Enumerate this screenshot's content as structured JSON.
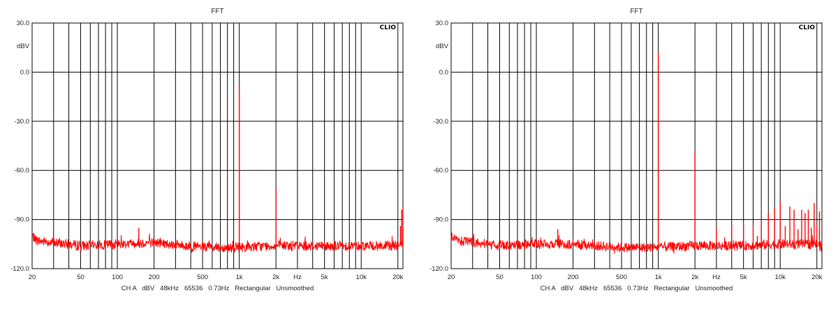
{
  "chart_data": [
    {
      "type": "line",
      "title": "FFT",
      "brand": "CLIO",
      "ylabel": "dBV",
      "xlabel": "Hz",
      "x_scale": "log",
      "xlim": [
        20,
        22000
      ],
      "ylim": [
        -120,
        30
      ],
      "y_ticks": [
        "30.0",
        "0.0",
        "-30.0",
        "-60.0",
        "-90.0",
        "-120.0"
      ],
      "y_tick_values": [
        30,
        0,
        -30,
        -60,
        -90,
        -120
      ],
      "x_ticks": [
        "20",
        "50",
        "100",
        "200",
        "500",
        "1k",
        "2k",
        "Hz",
        "5k",
        "10k",
        "20k"
      ],
      "x_tick_values": [
        20,
        50,
        100,
        200,
        500,
        1000,
        2000,
        3000,
        5000,
        10000,
        20000
      ],
      "footer": "CH A   dBV   48kHz   65536   0.73Hz   Rectangular   Unsmoothed",
      "series": [
        {
          "color": "#ff0000",
          "noise_floor": [
            [
              20,
              -100
            ],
            [
              22,
              -103
            ],
            [
              30,
              -104
            ],
            [
              50,
              -106
            ],
            [
              100,
              -105
            ],
            [
              200,
              -104
            ],
            [
              500,
              -107
            ],
            [
              1000,
              -107
            ],
            [
              2000,
              -106
            ],
            [
              5000,
              -106
            ],
            [
              10000,
              -106
            ],
            [
              20000,
              -106
            ],
            [
              22000,
              -105
            ]
          ],
          "peaks": [
            [
              1000,
              -7
            ],
            [
              2000,
              -71
            ],
            [
              150,
              -95
            ],
            [
              21000,
              -94
            ],
            [
              21500,
              -84
            ],
            [
              22000,
              -83
            ]
          ]
        }
      ]
    },
    {
      "type": "line",
      "title": "FFT",
      "brand": "CLIO",
      "ylabel": "dBV",
      "xlabel": "Hz",
      "x_scale": "log",
      "xlim": [
        20,
        22000
      ],
      "ylim": [
        -120,
        30
      ],
      "y_ticks": [
        "30.0",
        "0.0",
        "-30.0",
        "-60.0",
        "-90.0",
        "-120.0"
      ],
      "y_tick_values": [
        30,
        0,
        -30,
        -60,
        -90,
        -120
      ],
      "x_ticks": [
        "20",
        "50",
        "100",
        "200",
        "500",
        "1k",
        "2k",
        "Hz",
        "5k",
        "10k",
        "20k"
      ],
      "x_tick_values": [
        20,
        50,
        100,
        200,
        500,
        1000,
        2000,
        3000,
        5000,
        10000,
        20000
      ],
      "footer": "CH A   dBV   48kHz   65536   0.73Hz   Rectangular   Unsmoothed",
      "series": [
        {
          "color": "#ff0000",
          "noise_floor": [
            [
              20,
              -100
            ],
            [
              22,
              -103
            ],
            [
              30,
              -104
            ],
            [
              50,
              -106
            ],
            [
              100,
              -105
            ],
            [
              200,
              -105
            ],
            [
              500,
              -107
            ],
            [
              1000,
              -107
            ],
            [
              2000,
              -106
            ],
            [
              5000,
              -106
            ],
            [
              10000,
              -105
            ],
            [
              20000,
              -105
            ],
            [
              22000,
              -107
            ]
          ],
          "peaks": [
            [
              1000,
              12
            ],
            [
              2000,
              -49
            ],
            [
              3000,
              -95
            ],
            [
              4000,
              -93
            ],
            [
              5000,
              -92
            ],
            [
              6000,
              -94
            ],
            [
              7000,
              -90
            ],
            [
              8000,
              -86
            ],
            [
              9000,
              -83
            ],
            [
              10000,
              -79
            ],
            [
              11000,
              -94
            ],
            [
              12000,
              -82
            ],
            [
              13000,
              -84
            ],
            [
              14000,
              -96
            ],
            [
              15000,
              -84
            ],
            [
              16000,
              -86
            ],
            [
              17000,
              -84
            ],
            [
              18000,
              -95
            ],
            [
              19000,
              -80
            ],
            [
              20000,
              -94
            ],
            [
              21000,
              -85
            ],
            [
              150,
              -96
            ],
            [
              3500,
              -101
            ],
            [
              6500,
              -100
            ]
          ]
        }
      ]
    }
  ]
}
